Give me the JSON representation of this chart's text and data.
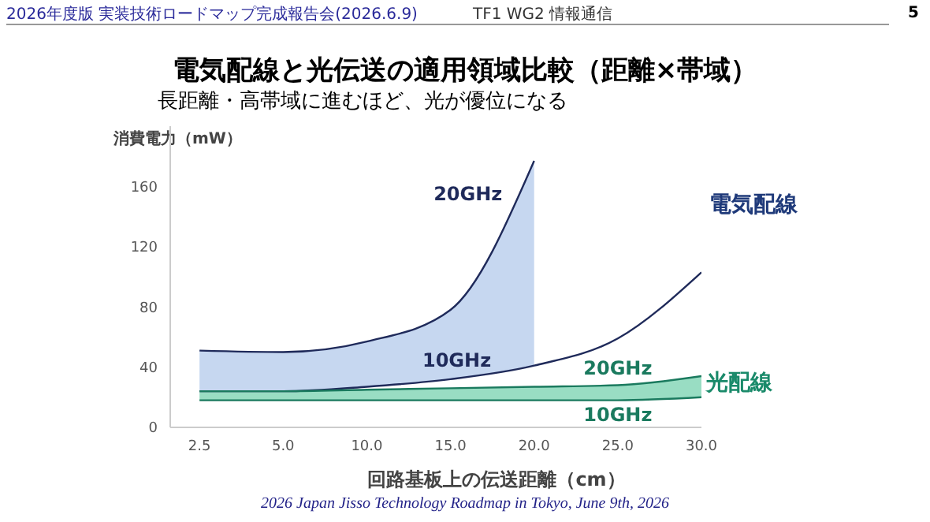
{
  "chart_data": {
    "type": "line",
    "title": "電気配線と光伝送の適用領域比較（距離×帯域）",
    "subtitle": "長距離・高帯域に進むほど、光が優位になる",
    "xlabel": "回路基板上の伝送距離（cm）",
    "ylabel": "消費電力（mW）",
    "categories": [
      "2.5",
      "5.0",
      "10.0",
      "15.0",
      "20.0",
      "25.0",
      "30.0"
    ],
    "series": [
      {
        "name": "20GHz",
        "color": "#1f2a5a",
        "values": [
          51,
          50,
          57,
          78,
          177,
          null,
          null
        ],
        "lower": [
          24,
          24,
          27,
          32,
          41,
          null,
          null
        ],
        "upper": [
          51,
          50,
          57,
          78,
          177,
          null,
          null
        ]
      },
      {
        "name": "10GHz",
        "color": "#1f2a5a",
        "values": [
          24,
          24,
          27,
          32,
          41,
          59,
          103
        ]
      },
      {
        "name": "20GHz",
        "color": "#1a7a5e",
        "values": [
          24,
          24,
          25,
          26,
          27,
          28,
          34
        ],
        "lower": [
          18,
          18,
          18,
          18,
          18,
          18,
          20
        ],
        "upper": [
          24,
          24,
          25,
          26,
          27,
          28,
          34
        ]
      },
      {
        "name": "10GHz",
        "color": "#1a7a5e",
        "values": [
          18,
          18,
          18,
          18,
          18,
          18,
          20
        ]
      }
    ],
    "ylim": [
      0,
      200
    ],
    "yticks": [
      0,
      40,
      80,
      120,
      160
    ],
    "grid": false,
    "legend": false,
    "marker": "none",
    "annotations": [
      "2026年度版  実装技術ロードマップ完成報告会(2026.6.9)",
      "TF1 WG2  情報通信",
      "5",
      "2026 Japan Jisso Technology Roadmap in Tokyo, June 9th, 2026",
      "電気配線",
      "光配線"
    ]
  }
}
